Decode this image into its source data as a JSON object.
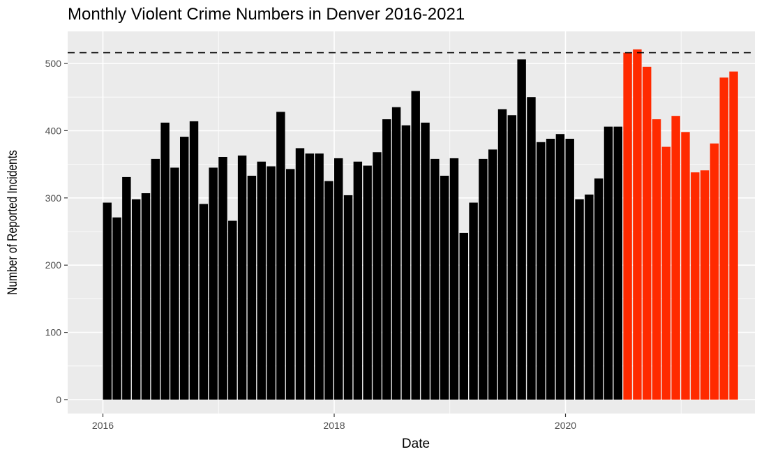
{
  "chart_data": {
    "type": "bar",
    "title": "Monthly Violent Crime Numbers in Denver 2016-2021",
    "xlabel": "Date",
    "ylabel": "Number of Reported Incidents",
    "ylim": [
      0,
      540
    ],
    "yticks": [
      0,
      100,
      200,
      300,
      400,
      500
    ],
    "xticks": [
      "2016",
      "2018",
      "2020"
    ],
    "grid": true,
    "reference_line": {
      "value": 516,
      "style": "dashed",
      "color": "#000000"
    },
    "colors": {
      "before": "#000000",
      "after": "#ff2a00",
      "panel": "#ebebeb",
      "grid": "#ffffff"
    },
    "categories": [
      "2016-01",
      "2016-02",
      "2016-03",
      "2016-04",
      "2016-05",
      "2016-06",
      "2016-07",
      "2016-08",
      "2016-09",
      "2016-10",
      "2016-11",
      "2016-12",
      "2017-01",
      "2017-02",
      "2017-03",
      "2017-04",
      "2017-05",
      "2017-06",
      "2017-07",
      "2017-08",
      "2017-09",
      "2017-10",
      "2017-11",
      "2017-12",
      "2018-01",
      "2018-02",
      "2018-03",
      "2018-04",
      "2018-05",
      "2018-06",
      "2018-07",
      "2018-08",
      "2018-09",
      "2018-10",
      "2018-11",
      "2018-12",
      "2019-01",
      "2019-02",
      "2019-03",
      "2019-04",
      "2019-05",
      "2019-06",
      "2019-07",
      "2019-08",
      "2019-09",
      "2019-10",
      "2019-11",
      "2019-12",
      "2020-01",
      "2020-02",
      "2020-03",
      "2020-04",
      "2020-05",
      "2020-06",
      "2020-07",
      "2020-08",
      "2020-09",
      "2020-10",
      "2020-11",
      "2020-12",
      "2021-01",
      "2021-02",
      "2021-03",
      "2021-04",
      "2021-05",
      "2021-06"
    ],
    "values": [
      293,
      271,
      331,
      298,
      307,
      358,
      412,
      345,
      391,
      414,
      291,
      345,
      361,
      266,
      363,
      333,
      354,
      347,
      428,
      343,
      374,
      366,
      366,
      325,
      359,
      304,
      354,
      348,
      368,
      417,
      435,
      408,
      459,
      412,
      358,
      333,
      359,
      248,
      293,
      358,
      372,
      432,
      423,
      506,
      450,
      383,
      388,
      395,
      388,
      298,
      305,
      329,
      406,
      406,
      516,
      521,
      495,
      417,
      376,
      422,
      398,
      338,
      341,
      381,
      479,
      488
    ],
    "highlight_from": "2020-07"
  }
}
